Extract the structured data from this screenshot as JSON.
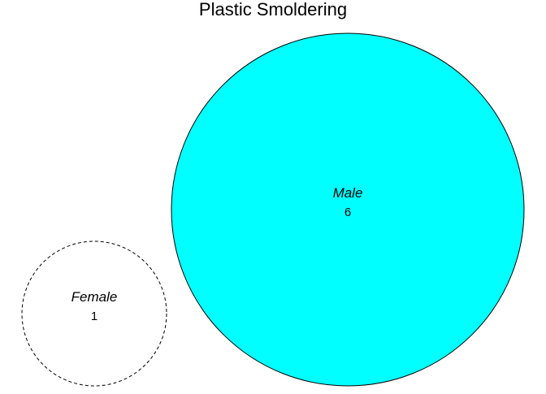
{
  "title": "Plastic Smoldering",
  "chart_data": {
    "type": "venn",
    "title": "Plastic Smoldering",
    "sets": [
      {
        "name": "Male",
        "value": 6,
        "fill": "#00FFFF",
        "border": "#000000",
        "border_style": "solid"
      },
      {
        "name": "Female",
        "value": 1,
        "fill": "#FFFFFF",
        "border": "#000000",
        "border_style": "dashed"
      }
    ]
  }
}
